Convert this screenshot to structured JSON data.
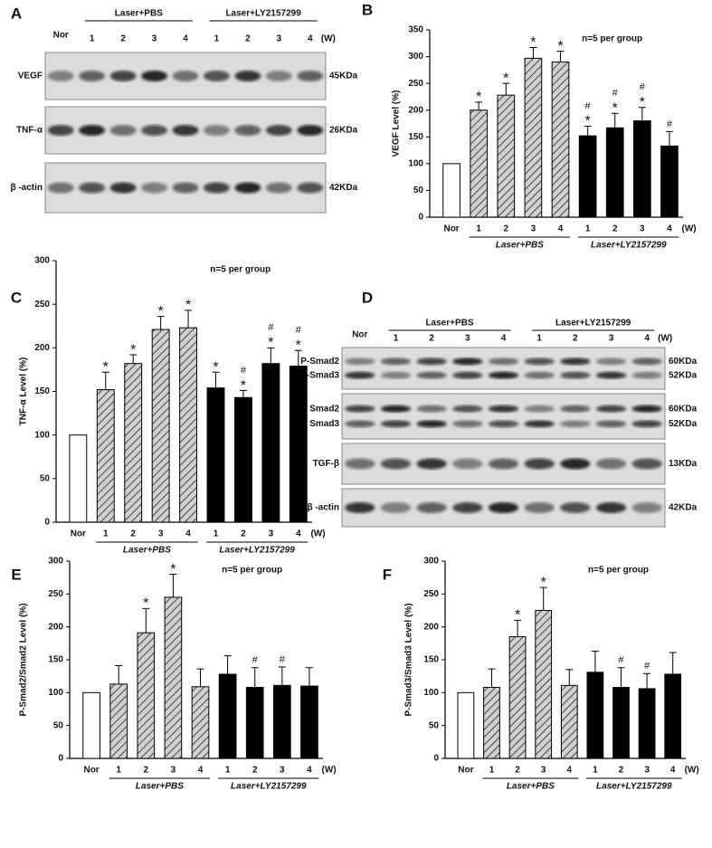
{
  "blots": [
    {
      "panel": "A",
      "groups": [
        "Laser+PBS",
        "Laser+LY2157299"
      ],
      "lane_labels": [
        "Nor",
        "1",
        "2",
        "3",
        "4",
        "1",
        "2",
        "3",
        "4"
      ],
      "unit": "(W)",
      "rows": [
        {
          "labels": [
            "VEGF"
          ],
          "sizes": [
            "45KDa"
          ]
        },
        {
          "labels": [
            "TNF-α"
          ],
          "sizes": [
            "26KDa"
          ]
        },
        {
          "labels": [
            "β -actin"
          ],
          "sizes": [
            "42KDa"
          ]
        }
      ]
    },
    {
      "panel": "D",
      "groups": [
        "Laser+PBS",
        "Laser+LY2157299"
      ],
      "lane_labels": [
        "Nor",
        "1",
        "2",
        "3",
        "4",
        "1",
        "2",
        "3",
        "4"
      ],
      "unit": "(W)",
      "rows": [
        {
          "labels": [
            "P-Smad2",
            "P-Smad3"
          ],
          "sizes": [
            "60KDa",
            "52KDa"
          ]
        },
        {
          "labels": [
            "Smad2",
            "Smad3"
          ],
          "sizes": [
            "60KDa",
            "52KDa"
          ]
        },
        {
          "labels": [
            "TGF-β"
          ],
          "sizes": [
            "13KDa"
          ]
        },
        {
          "labels": [
            "β -actin"
          ],
          "sizes": [
            "42KDa"
          ]
        }
      ]
    }
  ],
  "chart_data": [
    {
      "type": "bar",
      "panel": "B",
      "y_label": "VEGF Level (%)",
      "note": "n=5 per group",
      "unit": "(W)",
      "categories": [
        "Nor",
        "1",
        "2",
        "3",
        "4",
        "1",
        "2",
        "3",
        "4"
      ],
      "group_labels": [
        "Laser+PBS",
        "Laser+LY2157299"
      ],
      "values": [
        100,
        200,
        228,
        297,
        290,
        152,
        167,
        180,
        133
      ],
      "errors": [
        0,
        15,
        22,
        20,
        20,
        18,
        27,
        25,
        27
      ],
      "fills": [
        "white",
        "hatch",
        "hatch",
        "hatch",
        "hatch",
        "black",
        "black",
        "black",
        "black"
      ],
      "markers": [
        null,
        [
          "*"
        ],
        [
          "*"
        ],
        [
          "*"
        ],
        [
          "*"
        ],
        [
          "#",
          "*"
        ],
        [
          "#",
          "*"
        ],
        [
          "#",
          "*"
        ],
        [
          "#"
        ]
      ],
      "ylim": [
        0,
        350
      ],
      "yticks": [
        0,
        50,
        100,
        150,
        200,
        250,
        300,
        350
      ]
    },
    {
      "type": "bar",
      "panel": "C",
      "y_label": "TNF-α  Level (%)",
      "note": "n=5 per group",
      "unit": "(W)",
      "categories": [
        "Nor",
        "1",
        "2",
        "3",
        "4",
        "1",
        "2",
        "3",
        "4"
      ],
      "group_labels": [
        "Laser+PBS",
        "Laser+LY2157299"
      ],
      "values": [
        100,
        152,
        182,
        221,
        223,
        154,
        143,
        182,
        179
      ],
      "errors": [
        0,
        20,
        10,
        15,
        20,
        18,
        8,
        18,
        18
      ],
      "fills": [
        "white",
        "hatch",
        "hatch",
        "hatch",
        "hatch",
        "black",
        "black",
        "black",
        "black"
      ],
      "markers": [
        null,
        [
          "*"
        ],
        [
          "*"
        ],
        [
          "*"
        ],
        [
          "*"
        ],
        [
          "*"
        ],
        [
          "#",
          "*"
        ],
        [
          "#",
          "*"
        ],
        [
          "#",
          "*"
        ]
      ],
      "ylim": [
        0,
        300
      ],
      "yticks": [
        0,
        50,
        100,
        150,
        200,
        250,
        300
      ]
    },
    {
      "type": "bar",
      "panel": "E",
      "y_label": "P-Smad2/Smad2 Level (%)",
      "note": "n=5 per group",
      "unit": "(W)",
      "categories": [
        "Nor",
        "1",
        "2",
        "3",
        "4",
        "1",
        "2",
        "3",
        "4"
      ],
      "group_labels": [
        "Laser+PBS",
        "Laser+LY2157299"
      ],
      "values": [
        100,
        113,
        191,
        245,
        109,
        128,
        108,
        111,
        110
      ],
      "errors": [
        0,
        28,
        37,
        35,
        27,
        28,
        30,
        28,
        28
      ],
      "fills": [
        "white",
        "hatch",
        "hatch",
        "hatch",
        "hatch",
        "black",
        "black",
        "black",
        "black"
      ],
      "markers": [
        null,
        null,
        [
          "*"
        ],
        [
          "*"
        ],
        null,
        null,
        [
          "#"
        ],
        [
          "#"
        ],
        null
      ],
      "ylim": [
        0,
        300
      ],
      "yticks": [
        0,
        50,
        100,
        150,
        200,
        250,
        300
      ]
    },
    {
      "type": "bar",
      "panel": "F",
      "y_label": "P-Smad3/Smad3 Level (%)",
      "note": "n=5 per group",
      "unit": "(W)",
      "categories": [
        "Nor",
        "1",
        "2",
        "3",
        "4",
        "1",
        "2",
        "3",
        "4"
      ],
      "group_labels": [
        "Laser+PBS",
        "Laser+LY2157299"
      ],
      "values": [
        100,
        108,
        185,
        225,
        111,
        131,
        108,
        106,
        128
      ],
      "errors": [
        0,
        28,
        25,
        35,
        24,
        32,
        30,
        23,
        33
      ],
      "fills": [
        "white",
        "hatch",
        "hatch",
        "hatch",
        "hatch",
        "black",
        "black",
        "black",
        "black"
      ],
      "markers": [
        null,
        null,
        [
          "*"
        ],
        [
          "*"
        ],
        null,
        null,
        [
          "#"
        ],
        [
          "#"
        ],
        null
      ],
      "ylim": [
        0,
        300
      ],
      "yticks": [
        0,
        50,
        100,
        150,
        200,
        250,
        300
      ]
    }
  ]
}
